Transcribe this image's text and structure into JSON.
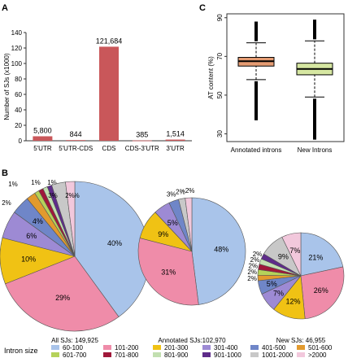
{
  "panels": {
    "a": "A",
    "b": "B",
    "c": "C"
  },
  "chart_data": [
    {
      "type": "bar",
      "ylabel": "Number of SJs (x1000)",
      "ylim": [
        0,
        140
      ],
      "yticks": [
        0,
        20,
        40,
        60,
        80,
        100,
        120,
        140
      ],
      "categories": [
        "5'UTR",
        "5'UTR-CDS",
        "CDS",
        "CDS-3'UTR",
        "3'UTR"
      ],
      "values": [
        5.8,
        0.844,
        121.684,
        0.385,
        1.514
      ],
      "value_labels": [
        "5,800",
        "844",
        "121,684",
        "385",
        "1,514"
      ],
      "bar_color": "#c9575a"
    },
    {
      "type": "box",
      "ylabel": "AT content (%)",
      "ylim": [
        26,
        92
      ],
      "yticks": [
        30,
        50,
        70,
        90
      ],
      "categories": [
        "Annotated introns",
        "New Introns"
      ],
      "boxes": [
        {
          "q1": 65,
          "median": 67.5,
          "q3": 69.5,
          "whisker_low": 58,
          "whisker_high": 77,
          "out_low": 37,
          "out_high": 88,
          "color": "#e59c73"
        },
        {
          "q1": 60.5,
          "median": 63.5,
          "q3": 66.5,
          "whisker_low": 49,
          "whisker_high": 78,
          "out_low": 27,
          "out_high": 89,
          "color": "#d6e7a2"
        }
      ]
    },
    {
      "type": "pie",
      "legend_title": "Intron size",
      "legend": [
        {
          "label": "60-100",
          "color": "#a9c4ea"
        },
        {
          "label": "101-200",
          "color": "#ef8ca9"
        },
        {
          "label": "201-300",
          "color": "#f0c214"
        },
        {
          "label": "301-400",
          "color": "#9d8ad4"
        },
        {
          "label": "401-500",
          "color": "#6f86c8"
        },
        {
          "label": "501-600",
          "color": "#e29a2e"
        },
        {
          "label": "601-700",
          "color": "#b5d25a"
        },
        {
          "label": "701-800",
          "color": "#a0183a"
        },
        {
          "label": "801-900",
          "color": "#c2dfb0"
        },
        {
          "label": "901-1000",
          "color": "#5e2c8a"
        },
        {
          "label": "1001-2000",
          "color": "#c8c8c8"
        },
        {
          "label": ">2000",
          "color": "#f2c8dc"
        }
      ],
      "pies": [
        {
          "label": "All SJs: 149,925",
          "values": [
            40,
            29,
            10,
            6,
            4,
            2,
            1,
            1,
            1,
            1,
            3,
            2
          ],
          "slice_labels": [
            "40%",
            "29%",
            "10%",
            "6%",
            "4%",
            "2%",
            "1%",
            "1%",
            "1%",
            "1%",
            "3%",
            "2%"
          ]
        },
        {
          "label": "Annotated SJs:102,970",
          "values": [
            48,
            31,
            9,
            5,
            3,
            0,
            0,
            0,
            0,
            0,
            2,
            2
          ],
          "slice_labels": [
            "48%",
            "31%",
            "9%",
            "5%",
            "3%",
            "",
            "",
            "",
            "",
            "",
            "2%",
            "~2%"
          ]
        },
        {
          "label": "New SJs: 46,955",
          "values": [
            21,
            26,
            12,
            7,
            5,
            2,
            2,
            2,
            2,
            2,
            9,
            7
          ],
          "slice_labels": [
            "21%",
            "26%",
            "12%",
            "7%",
            "5%",
            "2%",
            "2%",
            "2%",
            "2%",
            "2%",
            "9%",
            "7%"
          ]
        }
      ]
    }
  ]
}
